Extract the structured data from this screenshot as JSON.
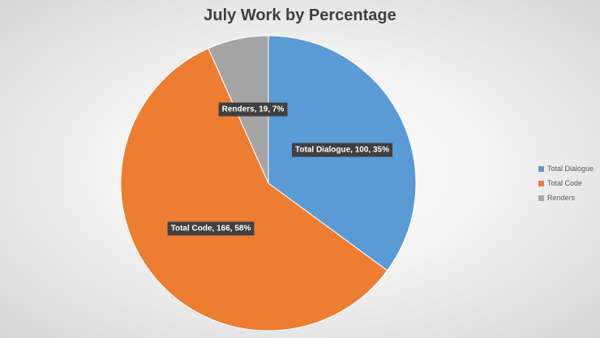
{
  "chart_data": {
    "type": "pie",
    "title": "July Work by Percentage",
    "categories": [
      "Total Dialogue",
      "Total Code",
      "Renders"
    ],
    "values": [
      100,
      166,
      19
    ],
    "percentages": [
      "35%",
      "58%",
      "7%"
    ],
    "colors": [
      "#5B9BD5",
      "#ED7D31",
      "#A5A5A5"
    ],
    "data_labels": [
      "Total Dialogue, 100, 35%",
      "Total Code, 166, 58%",
      "Renders, 19, 7%"
    ],
    "legend_position": "right",
    "start_angle": "12 o'clock, clockwise"
  }
}
